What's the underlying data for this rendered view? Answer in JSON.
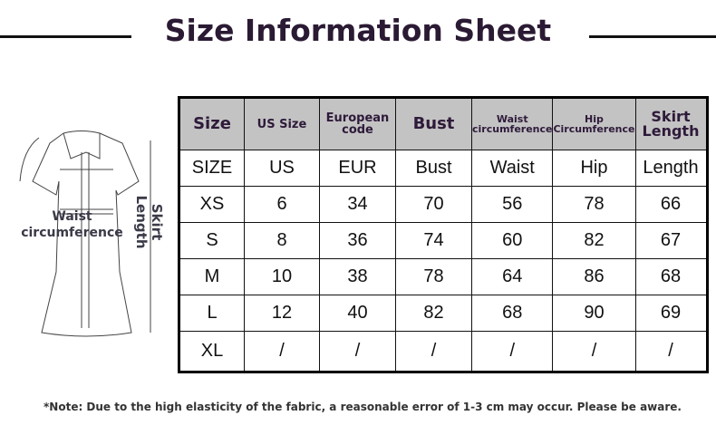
{
  "title": "Size Information Sheet",
  "headers": [
    "Size",
    "US Size",
    "European code",
    "Bust",
    "Waist circumference",
    "Hip Circumference",
    "Skirt Length"
  ],
  "rows": [
    [
      "SIZE",
      "US",
      "EUR",
      "Bust",
      "Waist",
      "Hip",
      "Length"
    ],
    [
      "XS",
      "6",
      "34",
      "70",
      "56",
      "78",
      "66"
    ],
    [
      "S",
      "8",
      "36",
      "74",
      "60",
      "82",
      "67"
    ],
    [
      "M",
      "10",
      "38",
      "78",
      "64",
      "86",
      "68"
    ],
    [
      "L",
      "12",
      "40",
      "82",
      "68",
      "90",
      "69"
    ],
    [
      "XL",
      "/",
      "/",
      "/",
      "/",
      "/",
      "/"
    ]
  ],
  "diagram": {
    "waist_label": "Waist circumference",
    "skirt_label": "Skirt Length"
  },
  "note": "*Note: Due to the high elasticity of the fabric, a reasonable error of 1-3 cm may occur. Please be aware."
}
